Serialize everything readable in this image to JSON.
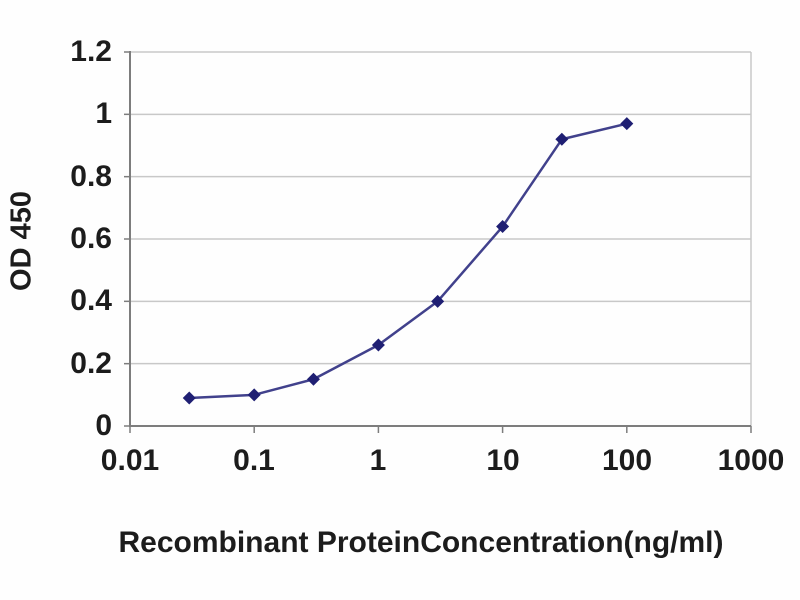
{
  "chart_data": {
    "type": "line",
    "title": "",
    "xlabel": "Recombinant ProteinConcentration(ng/ml)",
    "ylabel": "OD 450",
    "x_scale": "log",
    "y_scale": "linear",
    "xlim": [
      0.01,
      1000
    ],
    "ylim": [
      0,
      1.2
    ],
    "x_ticks": [
      0.01,
      0.1,
      1,
      10,
      100,
      1000
    ],
    "x_tick_labels": [
      "0.01",
      "0.1",
      "1",
      "10",
      "100",
      "1000"
    ],
    "y_ticks": [
      0,
      0.2,
      0.4,
      0.6,
      0.8,
      1,
      1.2
    ],
    "y_tick_labels": [
      "0",
      "0.2",
      "0.4",
      "0.6",
      "0.8",
      "1",
      "1.2"
    ],
    "grid": "horizontal",
    "legend": "none",
    "series": [
      {
        "name": "OD 450",
        "marker": "diamond",
        "x": [
          0.03,
          0.1,
          0.3,
          1,
          3,
          10,
          30,
          100
        ],
        "y": [
          0.09,
          0.1,
          0.15,
          0.26,
          0.4,
          0.64,
          0.92,
          0.97
        ]
      }
    ],
    "colors": {
      "line": "#41418c",
      "marker": "#1f1f73",
      "gridline": "#c8c8c8",
      "axis": "#7d7d7d",
      "text": "#1c1c1c",
      "background": "#ffffff"
    }
  }
}
